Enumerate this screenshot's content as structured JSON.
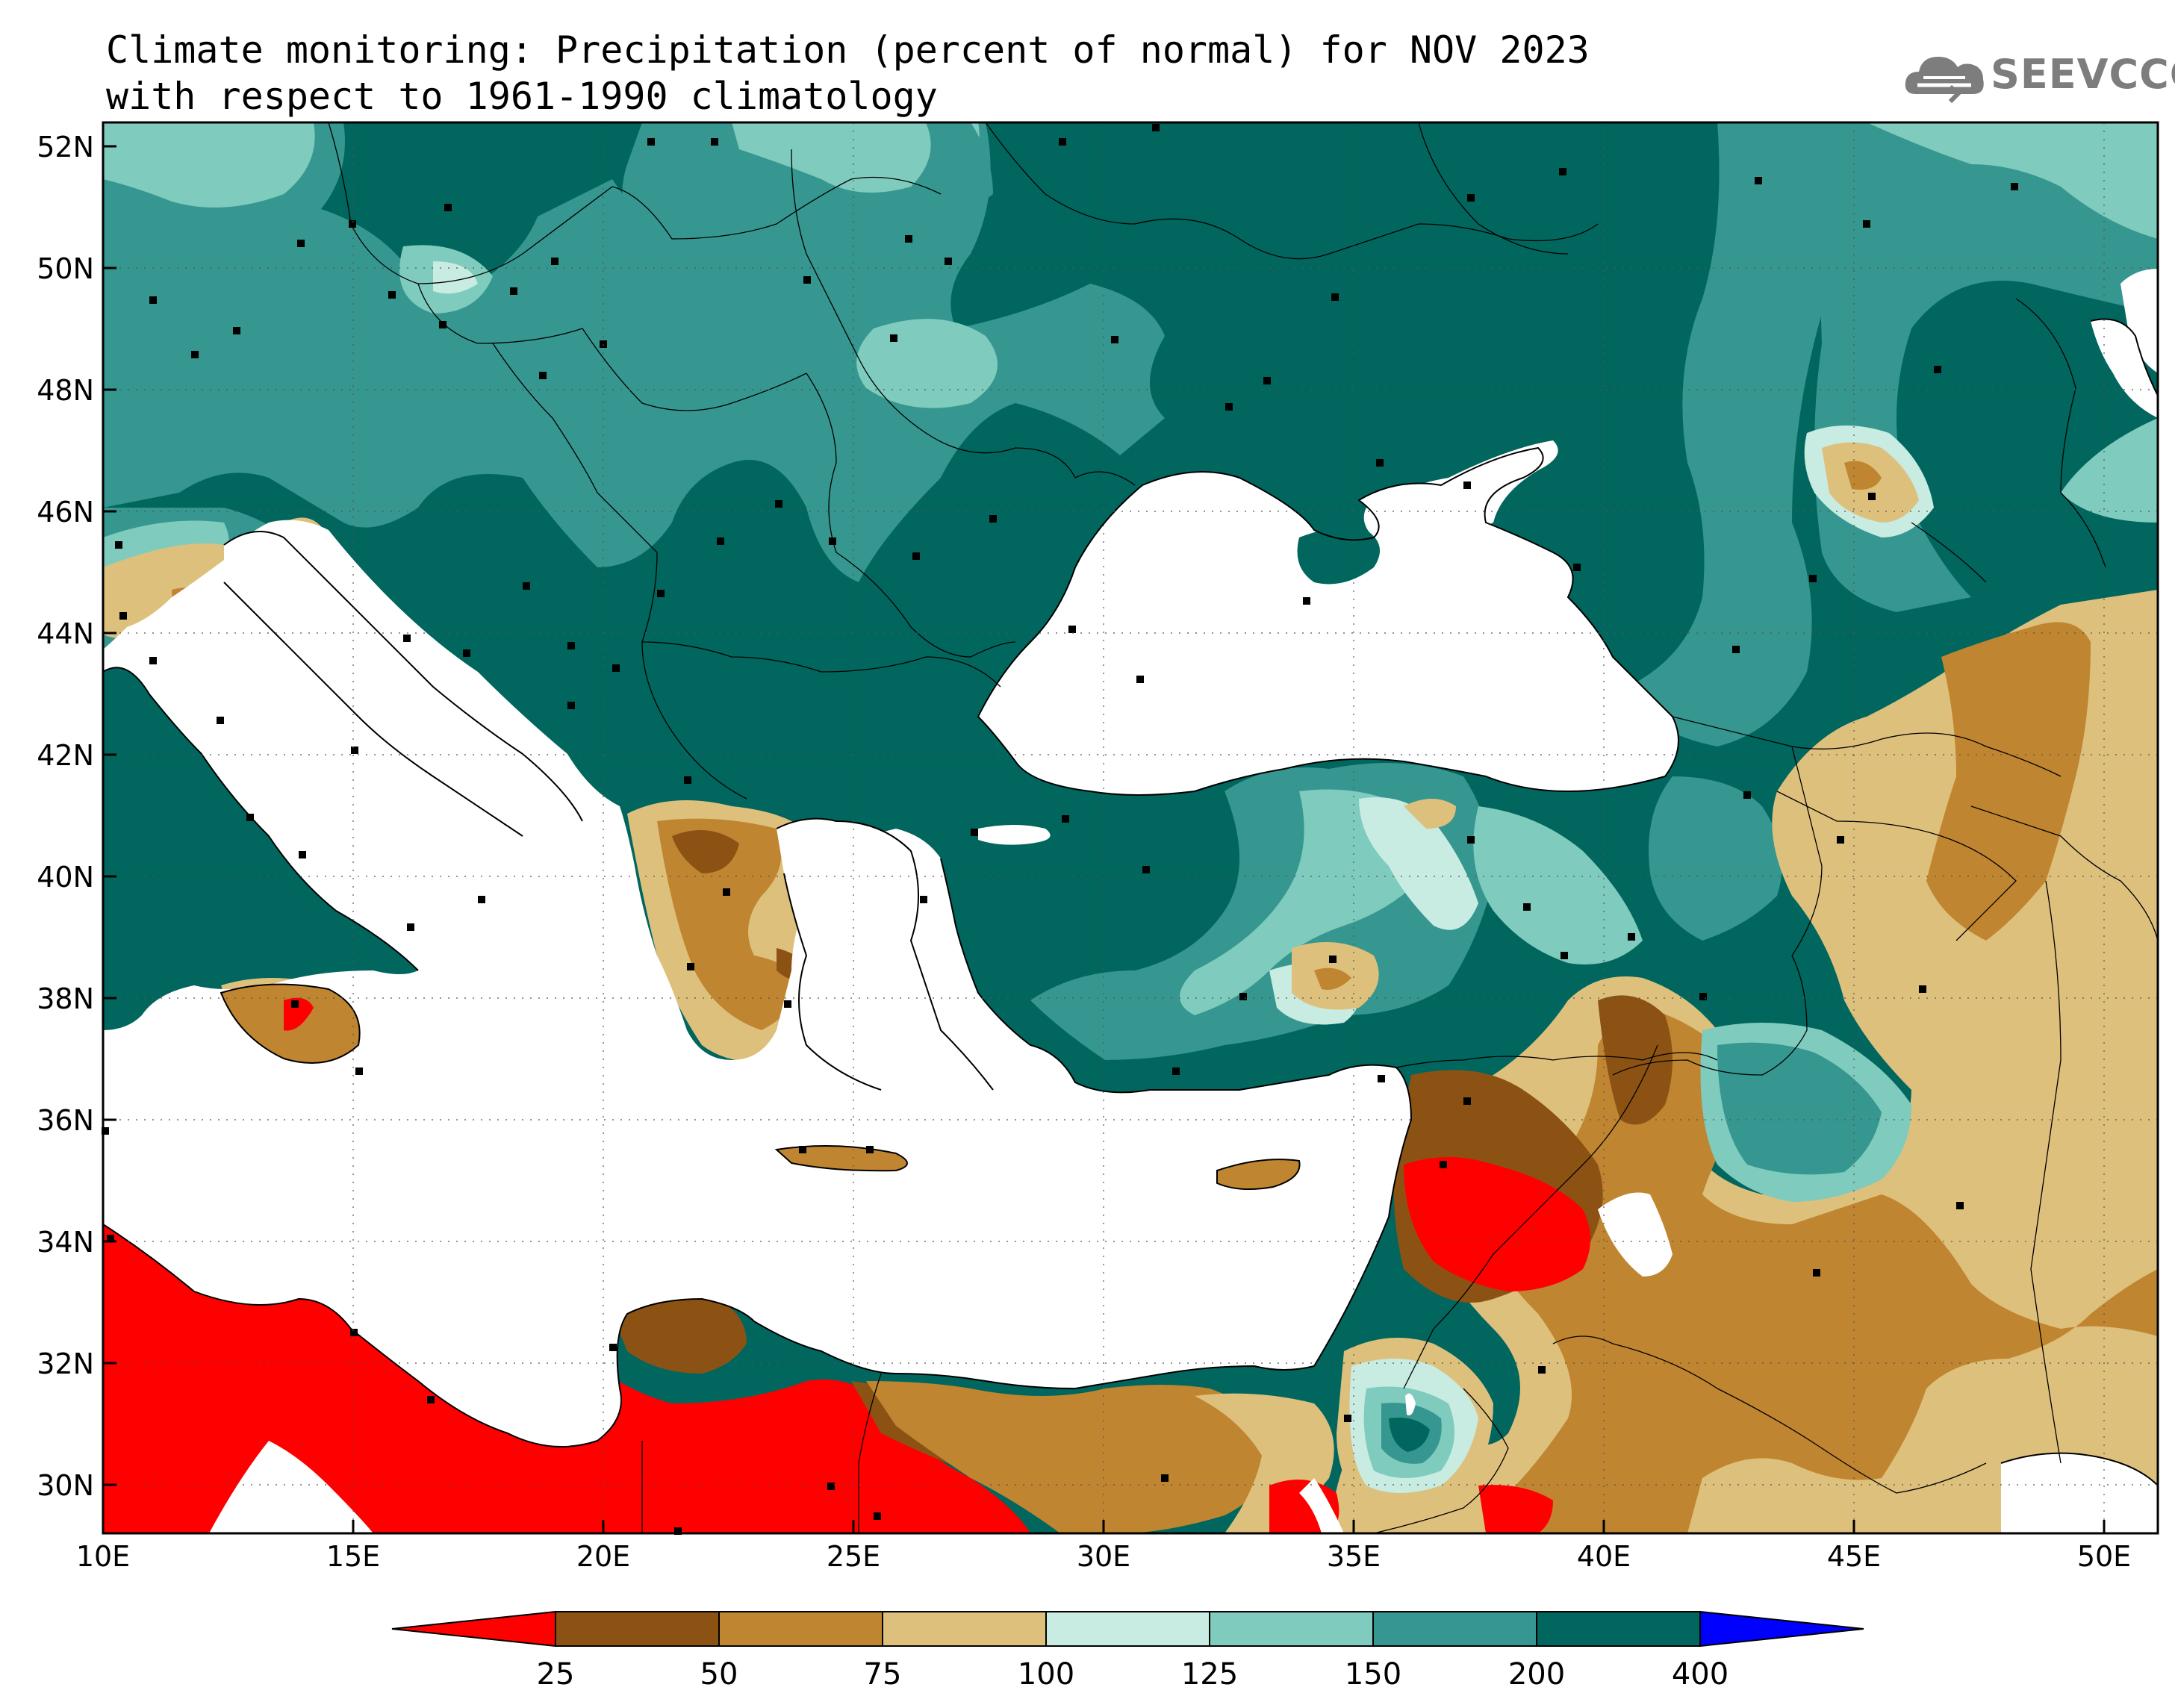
{
  "title": {
    "line1": "Climate monitoring: Precipitation (percent of normal) for NOV 2023",
    "line2": "with respect to 1961-1990 climatology"
  },
  "logo": {
    "text": "SEEVCCC",
    "icon": "cloud-icon"
  },
  "map": {
    "lat_ticks": [
      "52N",
      "50N",
      "48N",
      "46N",
      "44N",
      "42N",
      "40N",
      "38N",
      "36N",
      "34N",
      "32N",
      "30N"
    ],
    "lon_ticks": [
      "10E",
      "15E",
      "20E",
      "25E",
      "30E",
      "35E",
      "40E",
      "45E",
      "50E"
    ],
    "colors": {
      "lt25": "#ff0000",
      "c25_50": "#8c5214",
      "c50_75": "#c08530",
      "c75_100": "#dec07d",
      "c100_125": "#c8ebe2",
      "c125_150": "#7fcbbd",
      "c150_200": "#35978f",
      "c200_400": "#01665e",
      "gt400": "#0000ff",
      "sea": "#ffffff"
    }
  },
  "colorbar": {
    "labels": [
      "25",
      "50",
      "75",
      "100",
      "125",
      "150",
      "200",
      "400"
    ],
    "colors": [
      "#ff0000",
      "#8c5214",
      "#c08530",
      "#dec07d",
      "#c8ebe2",
      "#7fcbbd",
      "#35978f",
      "#01665e",
      "#0000ff"
    ]
  }
}
